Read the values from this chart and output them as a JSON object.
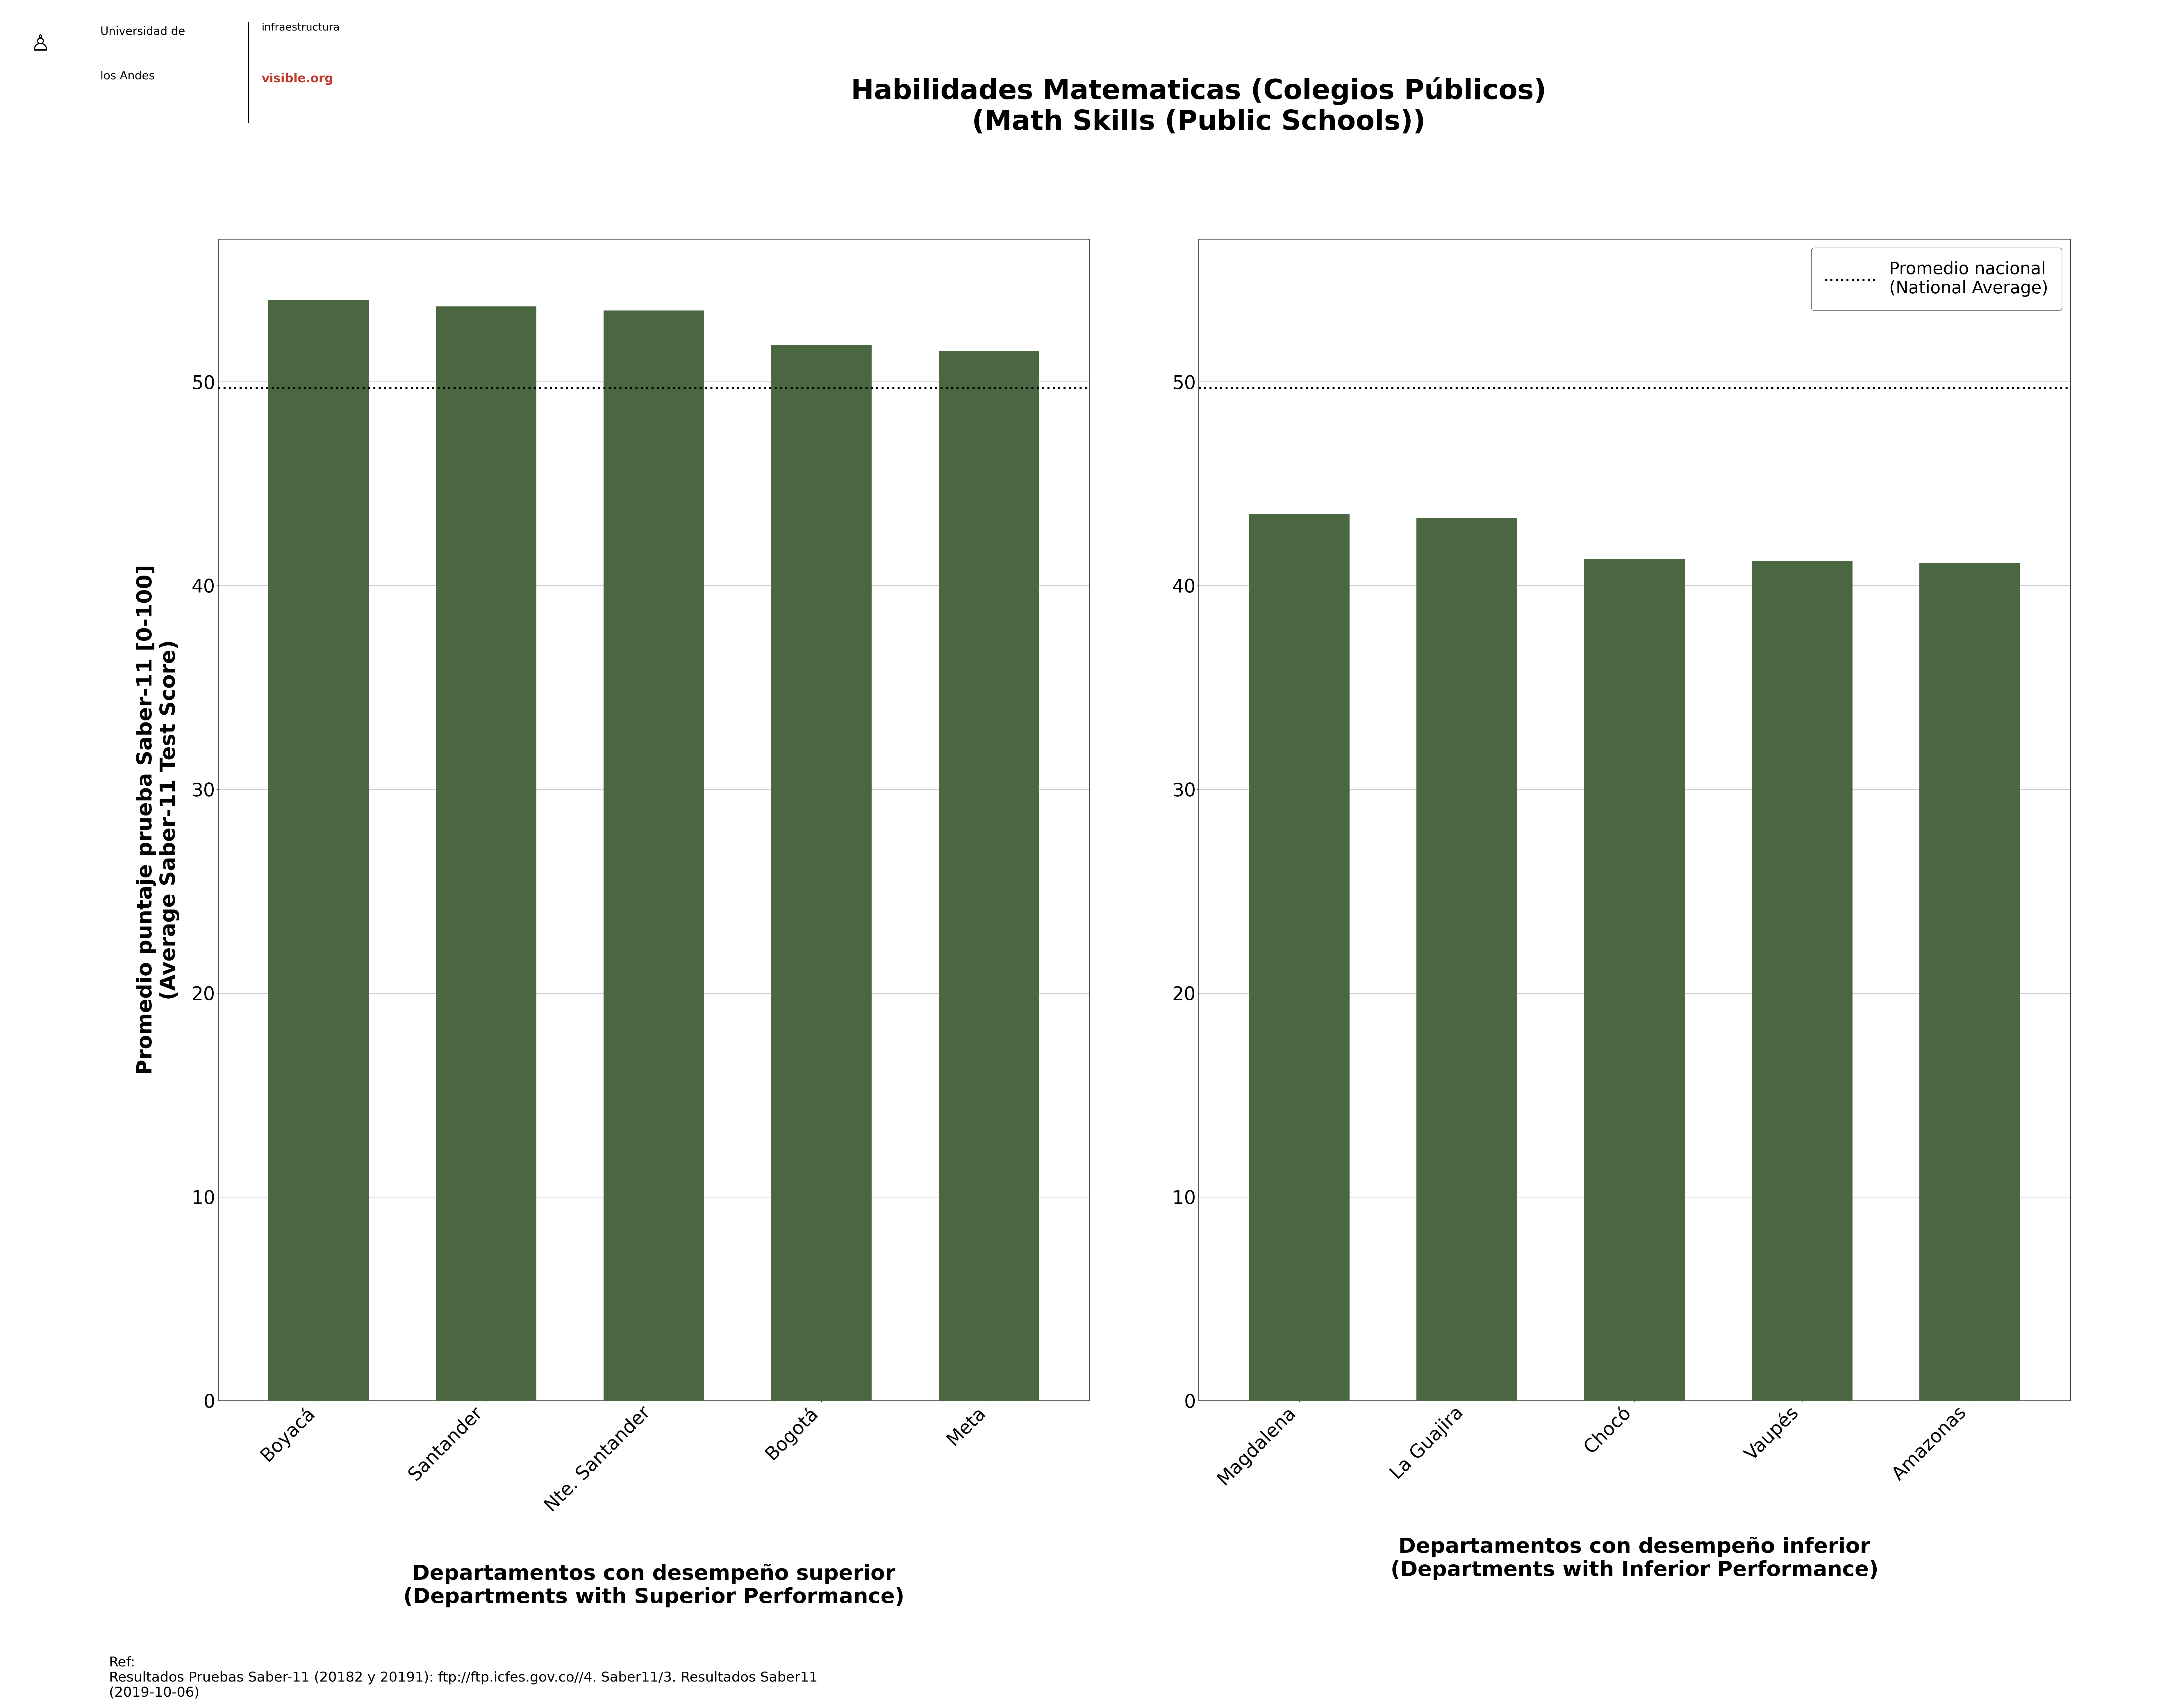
{
  "title_line1": "Habilidades Matematicas (Colegios Públicos)",
  "title_line2": "(Math Skills (Public Schools))",
  "bar_color": "#4a6741",
  "national_avg": 49.7,
  "left_categories": [
    "Boyacá",
    "Santander",
    "Nte. Santander",
    "Bogotá",
    "Meta"
  ],
  "left_values": [
    54.0,
    53.7,
    53.5,
    51.8,
    51.5
  ],
  "right_categories": [
    "Magdalena",
    "La Guajira",
    "Chocó",
    "Vaupés",
    "Amazonas"
  ],
  "right_values": [
    43.5,
    43.3,
    41.3,
    41.2,
    41.1
  ],
  "left_xlabel_line1": "Departamentos con desempeño superior",
  "left_xlabel_line2": "(Departments with Superior Performance)",
  "right_xlabel_line1": "Departamentos con desempeño inferior",
  "right_xlabel_line2": "(Departments with Inferior Performance)",
  "ylabel_line1": "Promedio puntaje prueba Saber-11 [0-100]",
  "ylabel_line2": "(Average Saber-11 Test Score)",
  "legend_line1": "Promedio nacional",
  "legend_line2": "(National Average)",
  "ref_text": "Ref:\nResultados Pruebas Saber-11 (20182 y 20191): ftp://ftp.icfes.gov.co//4. Saber11/3. Resultados Saber11\n(2019-10-06)",
  "ylim": [
    0,
    57
  ],
  "yticks": [
    0,
    10,
    20,
    30,
    40,
    50
  ],
  "background_color": "#ffffff",
  "grid_color": "#cccccc",
  "spine_color": "#333333",
  "title_fontsize": 68,
  "label_fontsize": 52,
  "tick_fontsize": 46,
  "ref_fontsize": 34,
  "legend_fontsize": 42
}
